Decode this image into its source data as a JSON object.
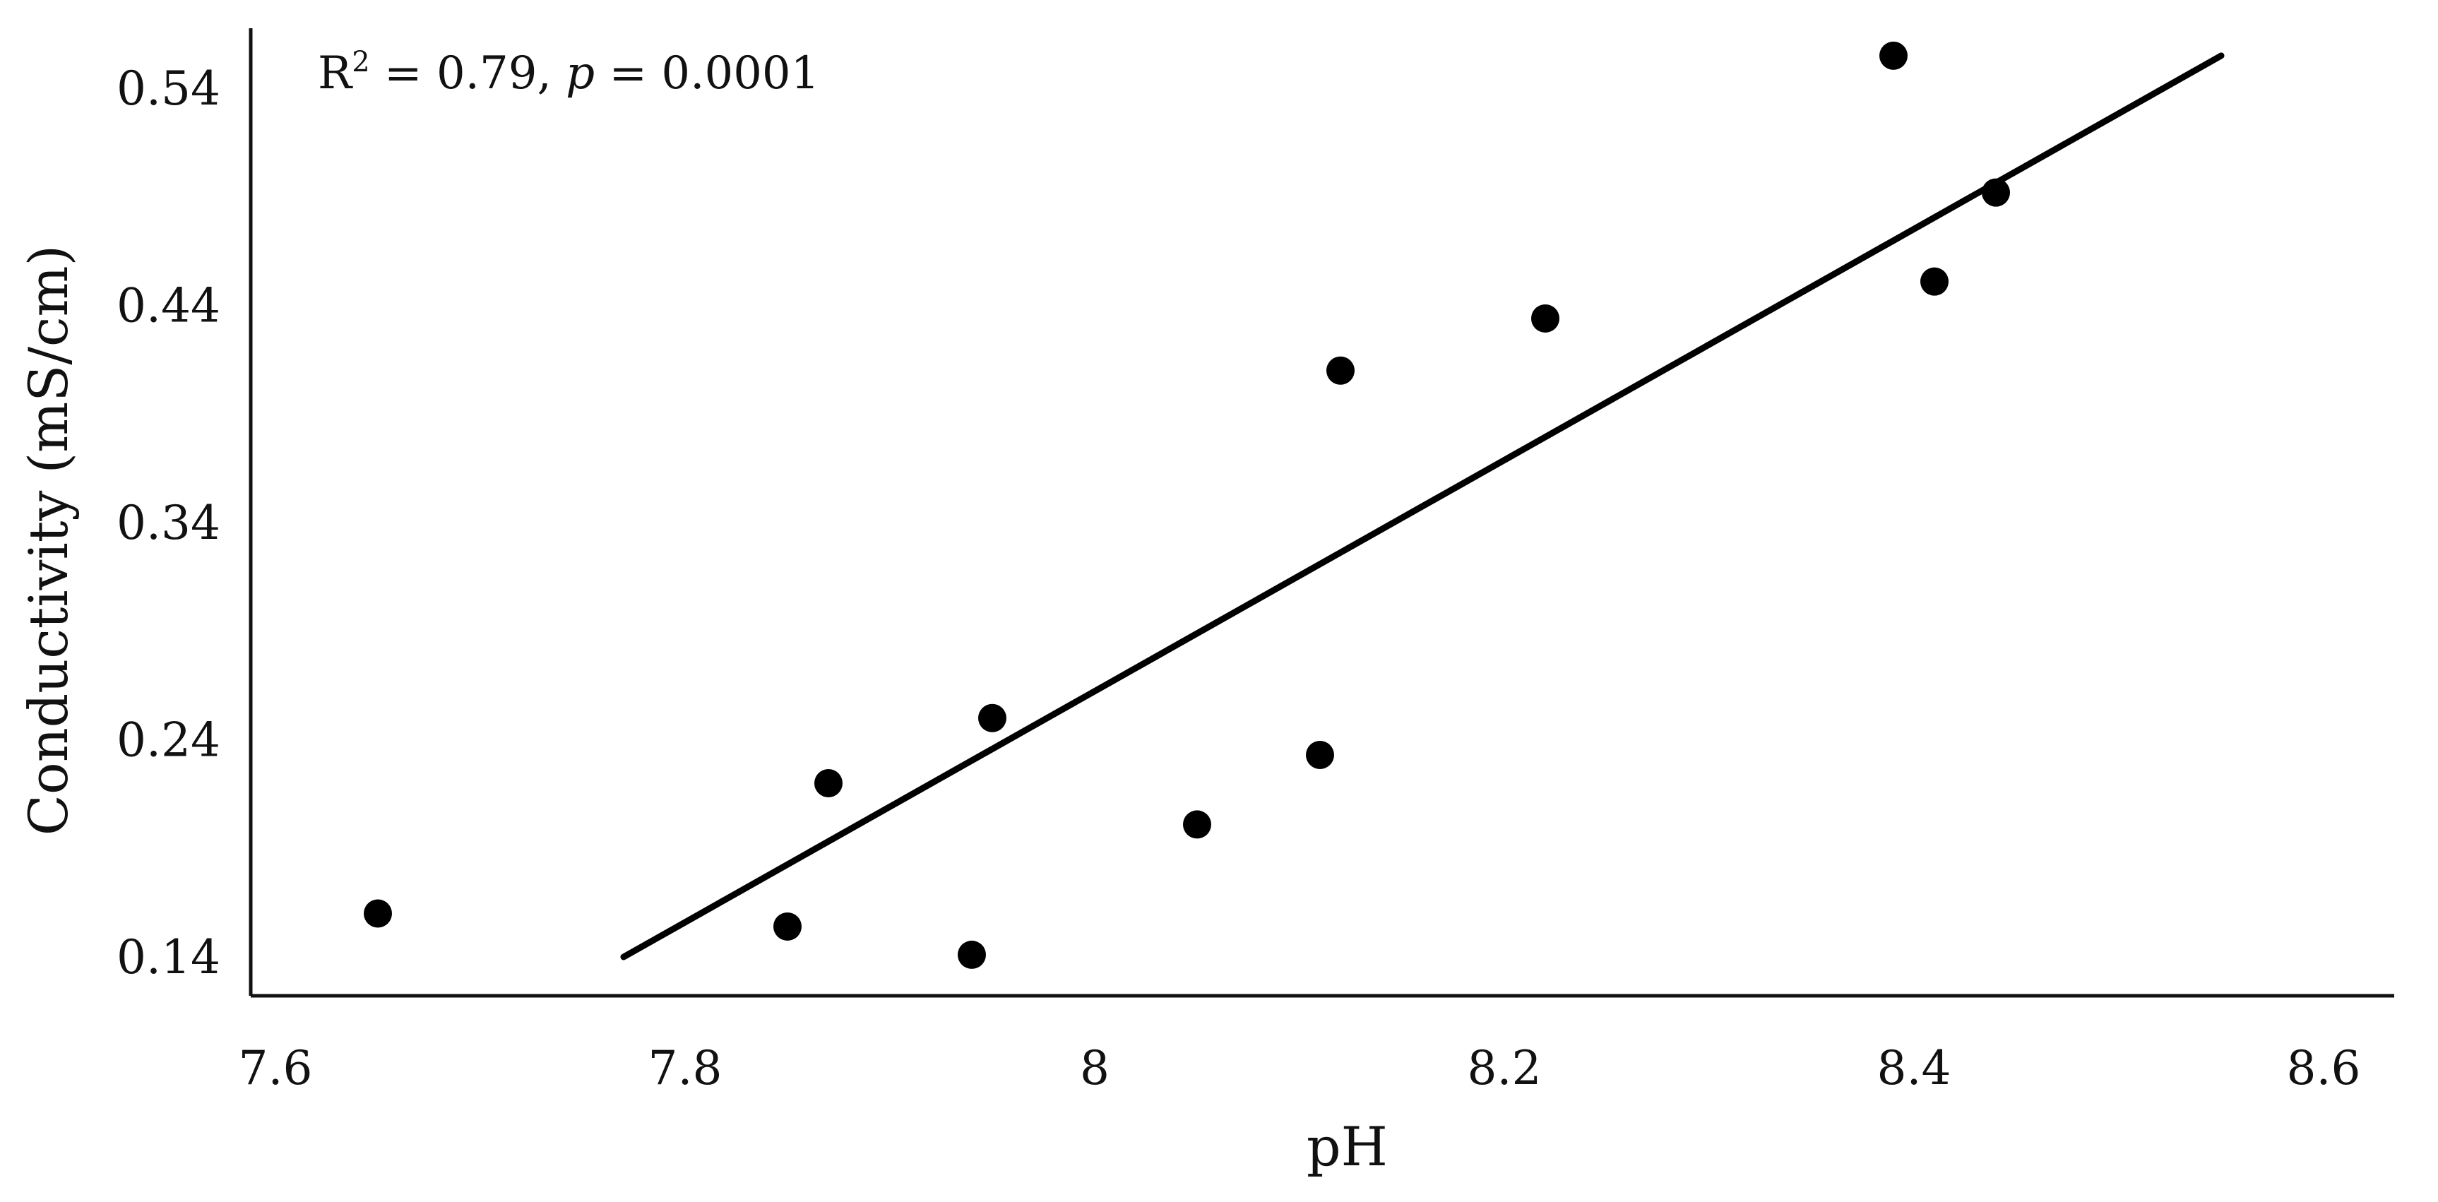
{
  "chart_data": {
    "type": "scatter",
    "title": "",
    "xlabel": "pH",
    "ylabel": "Conductivity (mS/cm)",
    "xlim": [
      7.6,
      8.6
    ],
    "ylim": [
      0.14,
      0.54
    ],
    "xticks": [
      "7.6",
      "7.8",
      "8",
      "8.2",
      "8.4",
      "8.6"
    ],
    "yticks": [
      "0.14",
      "0.24",
      "0.34",
      "0.44",
      "0.54"
    ],
    "grid": false,
    "annotation": {
      "r_prefix": "R",
      "r_sup": "2",
      "r_value": " = 0.79, ",
      "p_symbol": "p",
      "p_value": " = 0.0001"
    },
    "series": [
      {
        "x": [
          7.65,
          7.85,
          7.87,
          7.94,
          7.95,
          8.05,
          8.11,
          8.12,
          8.22,
          8.39,
          8.41,
          8.44
        ],
        "y": [
          0.16,
          0.154,
          0.22,
          0.141,
          0.25,
          0.201,
          0.233,
          0.41,
          0.434,
          0.555,
          0.451,
          0.492
        ]
      }
    ],
    "trendline": {
      "x": [
        7.77,
        8.55
      ],
      "y": [
        0.14,
        0.555
      ]
    }
  }
}
